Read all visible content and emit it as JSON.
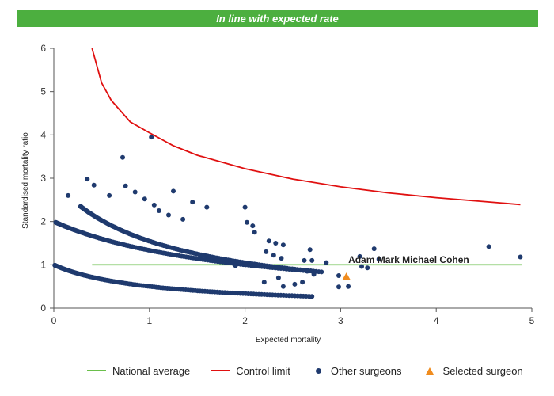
{
  "banner": {
    "text": "In line with expected rate",
    "color": "#4caf3f"
  },
  "legend": {
    "national_average": "National average",
    "control_limit": "Control limit",
    "other_surgeons": "Other surgeons",
    "selected_surgeon": "Selected surgeon"
  },
  "colors": {
    "national_average": "#6abf4b",
    "control_limit": "#e01010",
    "other_surgeons": "#1f3a6e",
    "selected_surgeon": "#f08c1e",
    "axis": "#555555"
  },
  "chart_data": {
    "type": "scatter",
    "title": "In line with expected rate",
    "xlabel": "Expected mortality",
    "ylabel": "Standardised mortality ratio",
    "xlim": [
      0,
      5
    ],
    "ylim": [
      0,
      6
    ],
    "xticks": [
      0,
      1,
      2,
      3,
      4,
      5
    ],
    "yticks": [
      0,
      1,
      2,
      3,
      4,
      5,
      6
    ],
    "grid": false,
    "legend_position": "bottom",
    "national_average": {
      "name": "National average",
      "y": 1,
      "x_range": [
        0.4,
        4.9
      ]
    },
    "control_limit": {
      "name": "Control limit",
      "points": [
        [
          0.4,
          6.0
        ],
        [
          0.5,
          5.2
        ],
        [
          0.6,
          4.8
        ],
        [
          0.8,
          4.3
        ],
        [
          1.0,
          4.05
        ],
        [
          1.25,
          3.75
        ],
        [
          1.5,
          3.53
        ],
        [
          2.0,
          3.22
        ],
        [
          2.5,
          2.98
        ],
        [
          3.0,
          2.8
        ],
        [
          3.5,
          2.66
        ],
        [
          4.0,
          2.55
        ],
        [
          4.5,
          2.46
        ],
        [
          4.88,
          2.39
        ]
      ]
    },
    "other_surgeons": {
      "name": "Other surgeons",
      "curve_families": [
        {
          "deaths": 1,
          "x_range": [
            0.01,
            2.7
          ]
        },
        {
          "deaths": 2,
          "x_range": [
            0.02,
            2.7
          ]
        },
        {
          "deaths": 3,
          "x_range": [
            0.28,
            2.8
          ]
        }
      ],
      "points": [
        [
          0.15,
          2.6
        ],
        [
          0.35,
          2.98
        ],
        [
          0.42,
          2.84
        ],
        [
          0.58,
          2.6
        ],
        [
          0.75,
          2.82
        ],
        [
          0.85,
          2.68
        ],
        [
          0.95,
          2.52
        ],
        [
          1.05,
          2.38
        ],
        [
          1.25,
          2.7
        ],
        [
          1.45,
          2.45
        ],
        [
          1.6,
          2.33
        ],
        [
          1.1,
          2.25
        ],
        [
          1.2,
          2.15
        ],
        [
          1.35,
          2.05
        ],
        [
          0.72,
          3.48
        ],
        [
          1.02,
          3.95
        ],
        [
          2.0,
          2.33
        ],
        [
          2.02,
          1.98
        ],
        [
          2.08,
          1.9
        ],
        [
          2.1,
          1.75
        ],
        [
          2.25,
          1.55
        ],
        [
          2.32,
          1.5
        ],
        [
          2.4,
          1.46
        ],
        [
          2.22,
          1.3
        ],
        [
          2.3,
          1.22
        ],
        [
          2.38,
          1.15
        ],
        [
          2.62,
          1.1
        ],
        [
          2.68,
          1.35
        ],
        [
          2.7,
          1.1
        ],
        [
          2.85,
          1.05
        ],
        [
          3.2,
          1.19
        ],
        [
          3.22,
          0.96
        ],
        [
          3.28,
          0.93
        ],
        [
          3.35,
          1.37
        ],
        [
          3.4,
          1.13
        ],
        [
          4.55,
          1.42
        ],
        [
          4.88,
          1.18
        ],
        [
          2.65,
          0.85
        ],
        [
          2.72,
          0.78
        ],
        [
          2.98,
          0.75
        ],
        [
          2.98,
          0.49
        ],
        [
          3.08,
          0.5
        ],
        [
          2.4,
          0.5
        ],
        [
          2.52,
          0.55
        ],
        [
          2.68,
          0.26
        ],
        [
          2.6,
          0.6
        ],
        [
          2.2,
          0.6
        ],
        [
          2.35,
          0.7
        ],
        [
          1.9,
          0.98
        ],
        [
          2.0,
          1.0
        ]
      ]
    },
    "selected_surgeon": {
      "name": "Selected surgeon",
      "x": 3.06,
      "y": 0.73,
      "label": "Adam Mark Michael Cohen",
      "label_anchor": [
        3.08,
        1.04
      ]
    }
  }
}
